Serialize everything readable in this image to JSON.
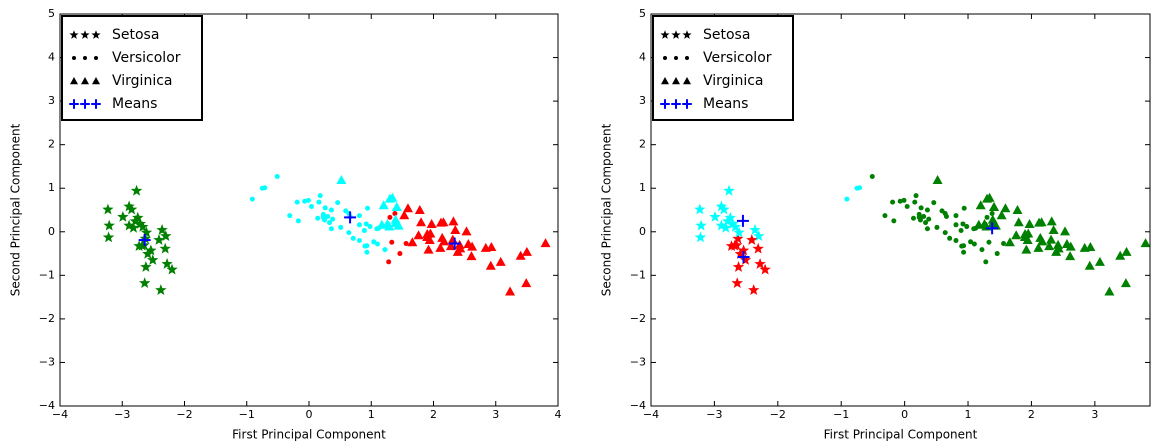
{
  "chart_data": [
    {
      "type": "scatter",
      "xlabel": "First Principal Component",
      "ylabel": "Second Principal Component",
      "xlim": [
        -4,
        4
      ],
      "ylim": [
        -4,
        5
      ],
      "xticks": [
        {
          "value": -4,
          "label": "−4"
        },
        {
          "value": -3,
          "label": "−3"
        },
        {
          "value": -2,
          "label": "−2"
        },
        {
          "value": -1,
          "label": "−1"
        },
        0,
        1,
        2,
        3,
        4
      ],
      "yticks": [
        {
          "value": -4,
          "label": "−4"
        },
        {
          "value": -3,
          "label": "−3"
        },
        {
          "value": -2,
          "label": "−2"
        },
        {
          "value": -1,
          "label": "−1"
        },
        0,
        1,
        2,
        3,
        4,
        5
      ],
      "legend": "upper left",
      "series": [
        {
          "name": "Setosa",
          "marker": "star",
          "color": "black",
          "x": [
            -2.68,
            -2.71,
            -2.89,
            -2.75,
            -2.73,
            -2.28,
            -2.82,
            -2.63,
            -2.89,
            -2.67,
            -2.51,
            -2.61,
            -2.79,
            -3.23,
            -2.64,
            -2.38,
            -2.62,
            -2.65,
            -2.2,
            -2.59,
            -2.31,
            -2.54,
            -3.22,
            -2.3,
            -2.36,
            -3.21,
            -2.77,
            -2.85,
            -2.99,
            -2.41
          ],
          "y": [
            -0.32,
            0.18,
            0.14,
            0.32,
            -0.33,
            -0.74,
            0.09,
            -0.16,
            0.58,
            0.11,
            -0.65,
            -0.02,
            0.24,
            0.51,
            -1.18,
            -1.34,
            -0.81,
            -0.31,
            -0.87,
            -0.51,
            -0.39,
            -0.43,
            -0.13,
            -0.1,
            0.04,
            0.14,
            0.94,
            0.51,
            0.34,
            -0.19
          ],
          "colors": [
            "green",
            "green",
            "green",
            "green",
            "green",
            "green",
            "green",
            "green",
            "green",
            "green",
            "green",
            "green",
            "green",
            "green",
            "green",
            "green",
            "green",
            "green",
            "green",
            "green",
            "green",
            "green",
            "green",
            "green",
            "green",
            "green",
            "green",
            "green",
            "green",
            "green"
          ]
        },
        {
          "name": "Versicolor",
          "marker": "dot",
          "color": "black",
          "x": [
            1.28,
            0.93,
            1.46,
            0.18,
            1.09,
            0.64,
            1.1,
            -0.75,
            1.04,
            -0.01,
            -0.51,
            0.51,
            0.26,
            0.98,
            -0.17,
            0.93,
            0.66,
            0.23,
            0.94,
            0.04,
            1.12,
            0.36,
            1.3,
            0.92,
            0.71,
            0.9,
            1.33,
            1.56,
            0.81,
            -0.31,
            -0.07,
            -0.19,
            0.14,
            1.38,
            0.59,
            0.81,
            1.22,
            0.81,
            0.25,
            0.16,
            0.46,
            0.89,
            0.23,
            -0.71,
            0.36,
            0.33,
            0.38,
            0.64,
            -0.91,
            0.3
          ],
          "y": [
            -0.69,
            -0.32,
            -0.5,
            0.83,
            0.07,
            0.42,
            -0.28,
            1.0,
            -0.23,
            0.72,
            1.27,
            0.1,
            0.55,
            0.12,
            0.25,
            -0.47,
            0.35,
            0.33,
            0.54,
            0.58,
            0.08,
            0.07,
            0.33,
            0.18,
            -0.15,
            -0.33,
            -0.24,
            -0.27,
            0.16,
            0.37,
            0.7,
            0.68,
            0.31,
            0.42,
            0.48,
            -0.2,
            -0.41,
            0.37,
            0.27,
            0.68,
            0.67,
            0.03,
            0.4,
            1.01,
            0.5,
            0.21,
            0.29,
            -0.02,
            0.75,
            0.35
          ],
          "colors": [
            "red",
            "cyan",
            "red",
            "cyan",
            "cyan",
            "cyan",
            "cyan",
            "cyan",
            "cyan",
            "cyan",
            "cyan",
            "cyan",
            "cyan",
            "cyan",
            "cyan",
            "cyan",
            "cyan",
            "cyan",
            "cyan",
            "cyan",
            "cyan",
            "cyan",
            "red",
            "cyan",
            "cyan",
            "cyan",
            "red",
            "red",
            "cyan",
            "cyan",
            "cyan",
            "cyan",
            "cyan",
            "red",
            "cyan",
            "cyan",
            "cyan",
            "cyan",
            "cyan",
            "cyan",
            "cyan",
            "cyan",
            "cyan",
            "cyan",
            "cyan",
            "cyan",
            "cyan",
            "cyan",
            "cyan",
            "cyan"
          ]
        },
        {
          "name": "Virginica",
          "marker": "triangle",
          "color": "black",
          "x": [
            2.53,
            1.41,
            2.62,
            1.97,
            2.35,
            3.4,
            0.52,
            2.93,
            2.32,
            2.92,
            1.66,
            1.8,
            2.17,
            1.34,
            1.59,
            1.9,
            1.95,
            3.49,
            3.8,
            1.3,
            2.43,
            1.2,
            3.5,
            1.39,
            2.28,
            2.61,
            1.26,
            1.29,
            2.12,
            2.39,
            2.84,
            3.23,
            2.16,
            1.44,
            1.78,
            3.08,
            2.14,
            1.9,
            1.17,
            2.11,
            2.31,
            1.92,
            1.41,
            2.56,
            2.42,
            1.94,
            1.53,
            1.76,
            1.9,
            1.39
          ],
          "y": [
            0.01,
            0.57,
            -0.34,
            0.18,
            0.04,
            -0.55,
            1.19,
            -0.35,
            0.24,
            -0.78,
            -0.24,
            0.22,
            -0.22,
            0.78,
            0.54,
            -0.12,
            -0.04,
            -1.18,
            -0.26,
            0.76,
            -0.38,
            0.61,
            -0.46,
            0.2,
            -0.33,
            -0.56,
            0.18,
            0.12,
            0.21,
            -0.46,
            -0.37,
            -1.37,
            0.22,
            0.14,
            0.5,
            -0.69,
            -0.14,
            -0.05,
            0.16,
            -0.37,
            -0.18,
            -0.41,
            0.57,
            -0.28,
            -0.3,
            -0.19,
            0.38,
            -0.08,
            -0.12,
            0.28
          ],
          "colors": [
            "red",
            "cyan",
            "red",
            "red",
            "red",
            "red",
            "cyan",
            "red",
            "red",
            "red",
            "red",
            "red",
            "red",
            "cyan",
            "red",
            "red",
            "red",
            "red",
            "red",
            "cyan",
            "red",
            "cyan",
            "red",
            "cyan",
            "red",
            "red",
            "cyan",
            "cyan",
            "red",
            "red",
            "red",
            "red",
            "red",
            "cyan",
            "red",
            "red",
            "red",
            "red",
            "cyan",
            "red",
            "red",
            "red",
            "cyan",
            "red",
            "red",
            "red",
            "red",
            "red",
            "red",
            "cyan"
          ]
        },
        {
          "name": "Means",
          "marker": "plus",
          "color": "blue",
          "x": [
            -2.64,
            0.66,
            2.34
          ],
          "y": [
            -0.19,
            0.33,
            -0.27
          ]
        }
      ]
    },
    {
      "type": "scatter",
      "xlabel": "First Principal Component",
      "ylabel": "Second Principal Component",
      "xlim": [
        -4,
        3.87
      ],
      "ylim": [
        -4,
        5
      ],
      "xticks": [
        {
          "value": -4,
          "label": "−4"
        },
        {
          "value": -3,
          "label": "−3"
        },
        {
          "value": -2,
          "label": "−2"
        },
        {
          "value": -1,
          "label": "−1"
        },
        0,
        1,
        2,
        3
      ],
      "yticks": [
        {
          "value": -4,
          "label": "−4"
        },
        {
          "value": -3,
          "label": "−3"
        },
        {
          "value": -2,
          "label": "−2"
        },
        {
          "value": -1,
          "label": "−1"
        },
        0,
        1,
        2,
        3,
        4,
        5
      ],
      "legend": "upper left",
      "series": [
        {
          "name": "Setosa",
          "marker": "star",
          "color": "black",
          "x": [
            -2.68,
            -2.71,
            -2.89,
            -2.75,
            -2.73,
            -2.28,
            -2.82,
            -2.63,
            -2.89,
            -2.67,
            -2.51,
            -2.61,
            -2.79,
            -3.23,
            -2.64,
            -2.38,
            -2.62,
            -2.65,
            -2.2,
            -2.59,
            -2.31,
            -2.54,
            -3.22,
            -2.3,
            -2.36,
            -3.21,
            -2.77,
            -2.85,
            -2.99,
            -2.41
          ],
          "y": [
            -0.32,
            0.18,
            0.14,
            0.32,
            -0.33,
            -0.74,
            0.09,
            -0.16,
            0.58,
            0.11,
            -0.65,
            -0.02,
            0.24,
            0.51,
            -1.18,
            -1.34,
            -0.81,
            -0.31,
            -0.87,
            -0.51,
            -0.39,
            -0.43,
            -0.13,
            -0.1,
            0.04,
            0.14,
            0.94,
            0.51,
            0.34,
            -0.19
          ],
          "colors": [
            "red",
            "cyan",
            "cyan",
            "cyan",
            "red",
            "red",
            "cyan",
            "red",
            "cyan",
            "cyan",
            "red",
            "cyan",
            "cyan",
            "cyan",
            "red",
            "red",
            "red",
            "red",
            "red",
            "red",
            "red",
            "red",
            "cyan",
            "cyan",
            "cyan",
            "cyan",
            "cyan",
            "cyan",
            "cyan",
            "red"
          ]
        },
        {
          "name": "Versicolor",
          "marker": "dot",
          "color": "black",
          "x": [
            1.28,
            0.93,
            1.46,
            0.18,
            1.09,
            0.64,
            1.1,
            -0.75,
            1.04,
            -0.01,
            -0.51,
            0.51,
            0.26,
            0.98,
            -0.17,
            0.93,
            0.66,
            0.23,
            0.94,
            0.04,
            1.12,
            0.36,
            1.3,
            0.92,
            0.71,
            0.9,
            1.33,
            1.56,
            0.81,
            -0.31,
            -0.07,
            -0.19,
            0.14,
            1.38,
            0.59,
            0.81,
            1.22,
            0.81,
            0.25,
            0.16,
            0.46,
            0.89,
            0.23,
            -0.71,
            0.36,
            0.33,
            0.38,
            0.64,
            -0.91,
            0.3
          ],
          "y": [
            -0.69,
            -0.32,
            -0.5,
            0.83,
            0.07,
            0.42,
            -0.28,
            1.0,
            -0.23,
            0.72,
            1.27,
            0.1,
            0.55,
            0.12,
            0.25,
            -0.47,
            0.35,
            0.33,
            0.54,
            0.58,
            0.08,
            0.07,
            0.33,
            0.18,
            -0.15,
            -0.33,
            -0.24,
            -0.27,
            0.16,
            0.37,
            0.7,
            0.68,
            0.31,
            0.42,
            0.48,
            -0.2,
            -0.41,
            0.37,
            0.27,
            0.68,
            0.67,
            0.03,
            0.4,
            1.01,
            0.5,
            0.21,
            0.29,
            -0.02,
            0.75,
            0.35
          ],
          "colors": [
            "green",
            "green",
            "green",
            "green",
            "green",
            "green",
            "green",
            "cyan",
            "green",
            "green",
            "green",
            "green",
            "green",
            "green",
            "green",
            "green",
            "green",
            "green",
            "green",
            "green",
            "green",
            "green",
            "green",
            "green",
            "green",
            "green",
            "green",
            "green",
            "green",
            "green",
            "green",
            "green",
            "green",
            "green",
            "green",
            "green",
            "green",
            "green",
            "green",
            "green",
            "green",
            "green",
            "green",
            "cyan",
            "green",
            "green",
            "green",
            "green",
            "cyan",
            "green"
          ]
        },
        {
          "name": "Virginica",
          "marker": "triangle",
          "color": "black",
          "x": [
            2.53,
            1.41,
            2.62,
            1.97,
            2.35,
            3.4,
            0.52,
            2.93,
            2.32,
            2.92,
            1.66,
            1.8,
            2.17,
            1.34,
            1.59,
            1.9,
            1.95,
            3.49,
            3.8,
            1.3,
            2.43,
            1.2,
            3.5,
            1.39,
            2.28,
            2.61,
            1.26,
            1.29,
            2.12,
            2.39,
            2.84,
            3.23,
            2.16,
            1.44,
            1.78,
            3.08,
            2.14,
            1.9,
            1.17,
            2.11,
            2.31,
            1.92,
            1.41,
            2.56,
            2.42,
            1.94,
            1.53,
            1.76,
            1.9,
            1.39
          ],
          "y": [
            0.01,
            0.57,
            -0.34,
            0.18,
            0.04,
            -0.55,
            1.19,
            -0.35,
            0.24,
            -0.78,
            -0.24,
            0.22,
            -0.22,
            0.78,
            0.54,
            -0.12,
            -0.04,
            -1.18,
            -0.26,
            0.76,
            -0.38,
            0.61,
            -0.46,
            0.2,
            -0.33,
            -0.56,
            0.18,
            0.12,
            0.21,
            -0.46,
            -0.37,
            -1.37,
            0.22,
            0.14,
            0.5,
            -0.69,
            -0.14,
            -0.05,
            0.16,
            -0.37,
            -0.18,
            -0.41,
            0.57,
            -0.28,
            -0.3,
            -0.19,
            0.38,
            -0.08,
            -0.12,
            0.28
          ],
          "colors": [
            "green",
            "green",
            "green",
            "green",
            "green",
            "green",
            "green",
            "green",
            "green",
            "green",
            "green",
            "green",
            "green",
            "green",
            "green",
            "green",
            "green",
            "green",
            "green",
            "green",
            "green",
            "green",
            "green",
            "green",
            "green",
            "green",
            "green",
            "green",
            "green",
            "green",
            "green",
            "green",
            "green",
            "green",
            "green",
            "green",
            "green",
            "green",
            "green",
            "green",
            "green",
            "green",
            "green",
            "green",
            "green",
            "green",
            "green",
            "green",
            "green",
            "green"
          ]
        },
        {
          "name": "Means",
          "marker": "plus",
          "color": "blue",
          "x": [
            -2.55,
            -2.54,
            1.38
          ],
          "y": [
            0.25,
            -0.58,
            0.08
          ]
        }
      ]
    }
  ]
}
